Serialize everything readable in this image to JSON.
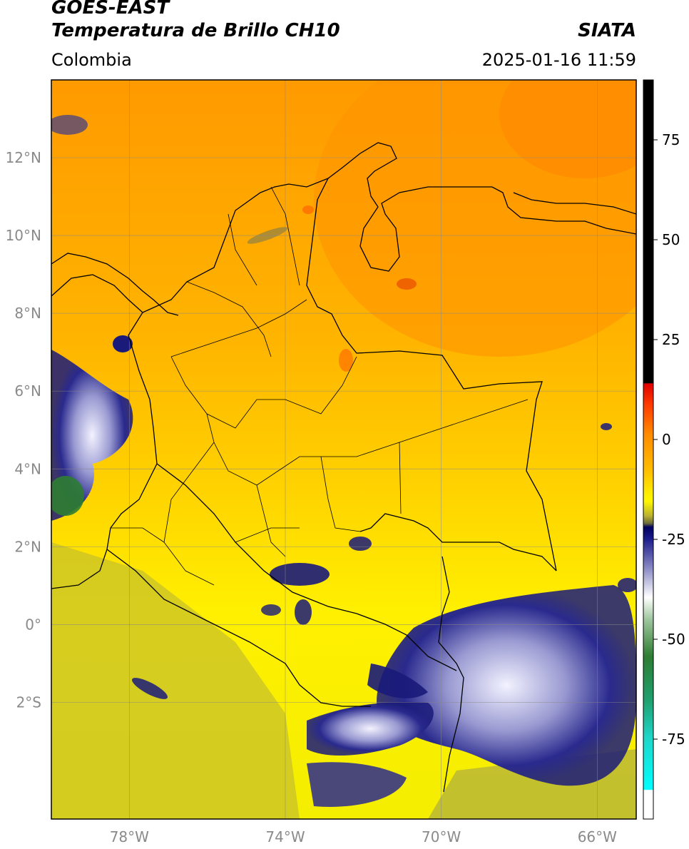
{
  "header": {
    "satellite": "GOES-EAST",
    "product": "Temperatura de Brillo CH10",
    "region": "Colombia",
    "organization": "SIATA",
    "timestamp": "2025-01-16 11:59"
  },
  "map": {
    "lon_range": [
      -80,
      -65
    ],
    "lat_range": [
      -5,
      14
    ],
    "lat_ticks": [
      {
        "lat": 12,
        "label": "12°N"
      },
      {
        "lat": 10,
        "label": "10°N"
      },
      {
        "lat": 8,
        "label": "8°N"
      },
      {
        "lat": 6,
        "label": "6°N"
      },
      {
        "lat": 4,
        "label": "4°N"
      },
      {
        "lat": 2,
        "label": "2°N"
      },
      {
        "lat": 0,
        "label": "0°"
      },
      {
        "lat": -2,
        "label": "2°S"
      }
    ],
    "lon_ticks": [
      {
        "lon": -78,
        "label": "78°W"
      },
      {
        "lon": -74,
        "label": "74°W"
      },
      {
        "lon": -70,
        "label": "70°W"
      },
      {
        "lon": -66,
        "label": "66°W"
      }
    ],
    "gridlines": true,
    "colors": {
      "warm": "#ff9f00",
      "mid": "#ffd000",
      "cool": "#f2ea05",
      "olive": "#b0b23a",
      "cloud_dark": "#1a1a7a",
      "cloud_mid": "#8a8ac8",
      "cloud_light": "#eeeeff",
      "cloud_core": "#2e7d32",
      "boundary": "#000000"
    }
  },
  "colorbar": {
    "range": [
      -95,
      90
    ],
    "ticks": [
      {
        "value": 75,
        "label": "75"
      },
      {
        "value": 50,
        "label": "50"
      },
      {
        "value": 25,
        "label": "25"
      },
      {
        "value": 0,
        "label": "0"
      },
      {
        "value": -25,
        "label": "-25"
      },
      {
        "value": -50,
        "label": "-50"
      },
      {
        "value": -75,
        "label": "-75"
      }
    ]
  }
}
